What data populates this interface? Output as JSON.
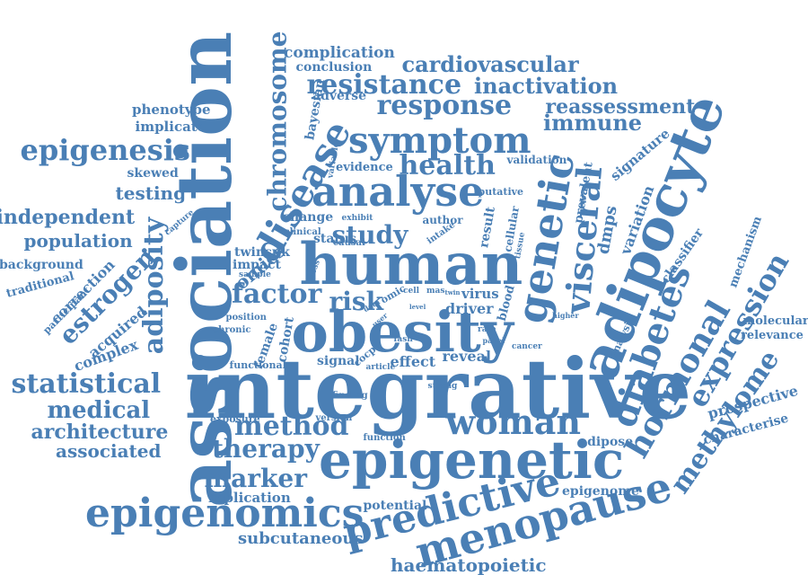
{
  "color": "#4a7fb5",
  "words": [
    "integrative",
    "obesity",
    "association",
    "human",
    "epigenetic",
    "adipocyte",
    "epigenomics",
    "menopause",
    "predictive",
    "analyse",
    "genetic",
    "disease",
    "woman",
    "symptom",
    "diabetes",
    "hormonal",
    "visceral",
    "response",
    "resistance",
    "health",
    "expression",
    "methylome",
    "factor",
    "risk",
    "adiposity",
    "chromosome",
    "epigenesis",
    "statistical",
    "study",
    "method",
    "therapy",
    "marker",
    "cardiovascular",
    "inactivation",
    "reassessment",
    "immune",
    "medical",
    "architecture",
    "associated",
    "estrogen",
    "independent",
    "population",
    "testing",
    "haematopoietic",
    "subcutaneous",
    "replication",
    "potential",
    "epigenome",
    "adipose",
    "prospective",
    "characterise",
    "molecular",
    "relevance",
    "mechanism",
    "classifier",
    "variation",
    "dmps",
    "signature",
    "prevalent",
    "validation",
    "putative",
    "complication",
    "conclusion",
    "adverse",
    "bayesian",
    "phenotype",
    "implicate",
    "skewed",
    "background",
    "traditional",
    "correction",
    "participant",
    "acquired",
    "complex",
    "omics",
    "twinsuk",
    "position",
    "chronic",
    "female",
    "cohort",
    "functional",
    "signal",
    "effect",
    "reveal",
    "finding",
    "strong",
    "exposure",
    "version",
    "function",
    "change",
    "clinical",
    "status",
    "causal",
    "author",
    "result",
    "cellular",
    "tissue",
    "intake",
    "driver",
    "virus",
    "blood",
    "evidence",
    "variable",
    "capture",
    "exhibit",
    "sample",
    "cross",
    "cell",
    "omic",
    "user",
    "data",
    "level",
    "mas",
    "twin",
    "rate",
    "panel",
    "analysis",
    "higher",
    "cancer",
    "article",
    "cocp",
    "fasn",
    "impact"
  ]
}
